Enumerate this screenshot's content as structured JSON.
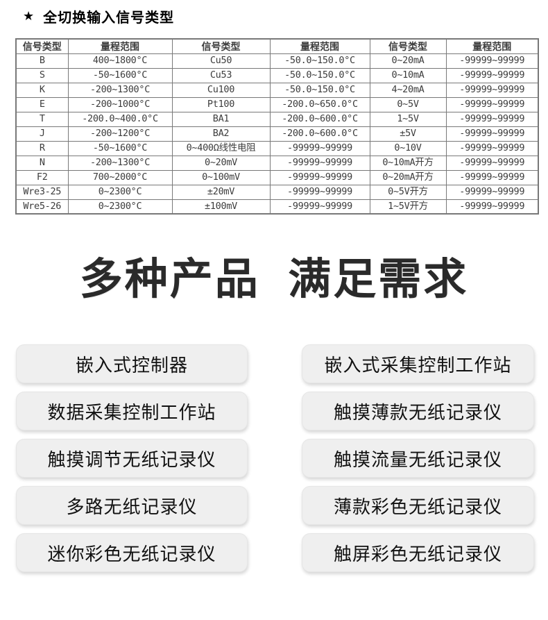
{
  "header": {
    "star": "★",
    "title": "全切换输入信号类型"
  },
  "table": {
    "columns": [
      "信号类型",
      "量程范围",
      "信号类型",
      "量程范围",
      "信号类型",
      "量程范围"
    ],
    "rows": [
      [
        "B",
        "400~1800°C",
        "Cu50",
        "-50.0~150.0°C",
        "0~20mA",
        "-99999~99999"
      ],
      [
        "S",
        "-50~1600°C",
        "Cu53",
        "-50.0~150.0°C",
        "0~10mA",
        "-99999~99999"
      ],
      [
        "K",
        "-200~1300°C",
        "Cu100",
        "-50.0~150.0°C",
        "4~20mA",
        "-99999~99999"
      ],
      [
        "E",
        "-200~1000°C",
        "Pt100",
        "-200.0~650.0°C",
        "0~5V",
        "-99999~99999"
      ],
      [
        "T",
        "-200.0~400.0°C",
        "BA1",
        "-200.0~600.0°C",
        "1~5V",
        "-99999~99999"
      ],
      [
        "J",
        "-200~1200°C",
        "BA2",
        "-200.0~600.0°C",
        "±5V",
        "-99999~99999"
      ],
      [
        "R",
        "-50~1600°C",
        "0~400Ω线性电阻",
        "-99999~99999",
        "0~10V",
        "-99999~99999"
      ],
      [
        "N",
        "-200~1300°C",
        "0~20mV",
        "-99999~99999",
        "0~10mA开方",
        "-99999~99999"
      ],
      [
        "F2",
        "700~2000°C",
        "0~100mV",
        "-99999~99999",
        "0~20mA开方",
        "-99999~99999"
      ],
      [
        "Wre3-25",
        "0~2300°C",
        "±20mV",
        "-99999~99999",
        "0~5V开方",
        "-99999~99999"
      ],
      [
        "Wre5-26",
        "0~2300°C",
        "±100mV",
        "-99999~99999",
        "1~5V开方",
        "-99999~99999"
      ]
    ]
  },
  "banner": {
    "title": "多种产品  满足需求"
  },
  "products": {
    "left": [
      "嵌入式控制器",
      "数据采集控制工作站",
      "触摸调节无纸记录仪",
      "多路无纸记录仪",
      "迷你彩色无纸记录仪"
    ],
    "right": [
      "嵌入式采集控制工作站",
      "触摸薄款无纸记录仪",
      "触摸流量无纸记录仪",
      "薄款彩色无纸记录仪",
      "触屏彩色无纸记录仪"
    ]
  },
  "colors": {
    "page_bg": "#ffffff",
    "text": "#3c3c3c",
    "table_border": "#787878",
    "heading_text": "#2a2a2a",
    "button_bg": "#efefef",
    "button_text": "#111111"
  }
}
